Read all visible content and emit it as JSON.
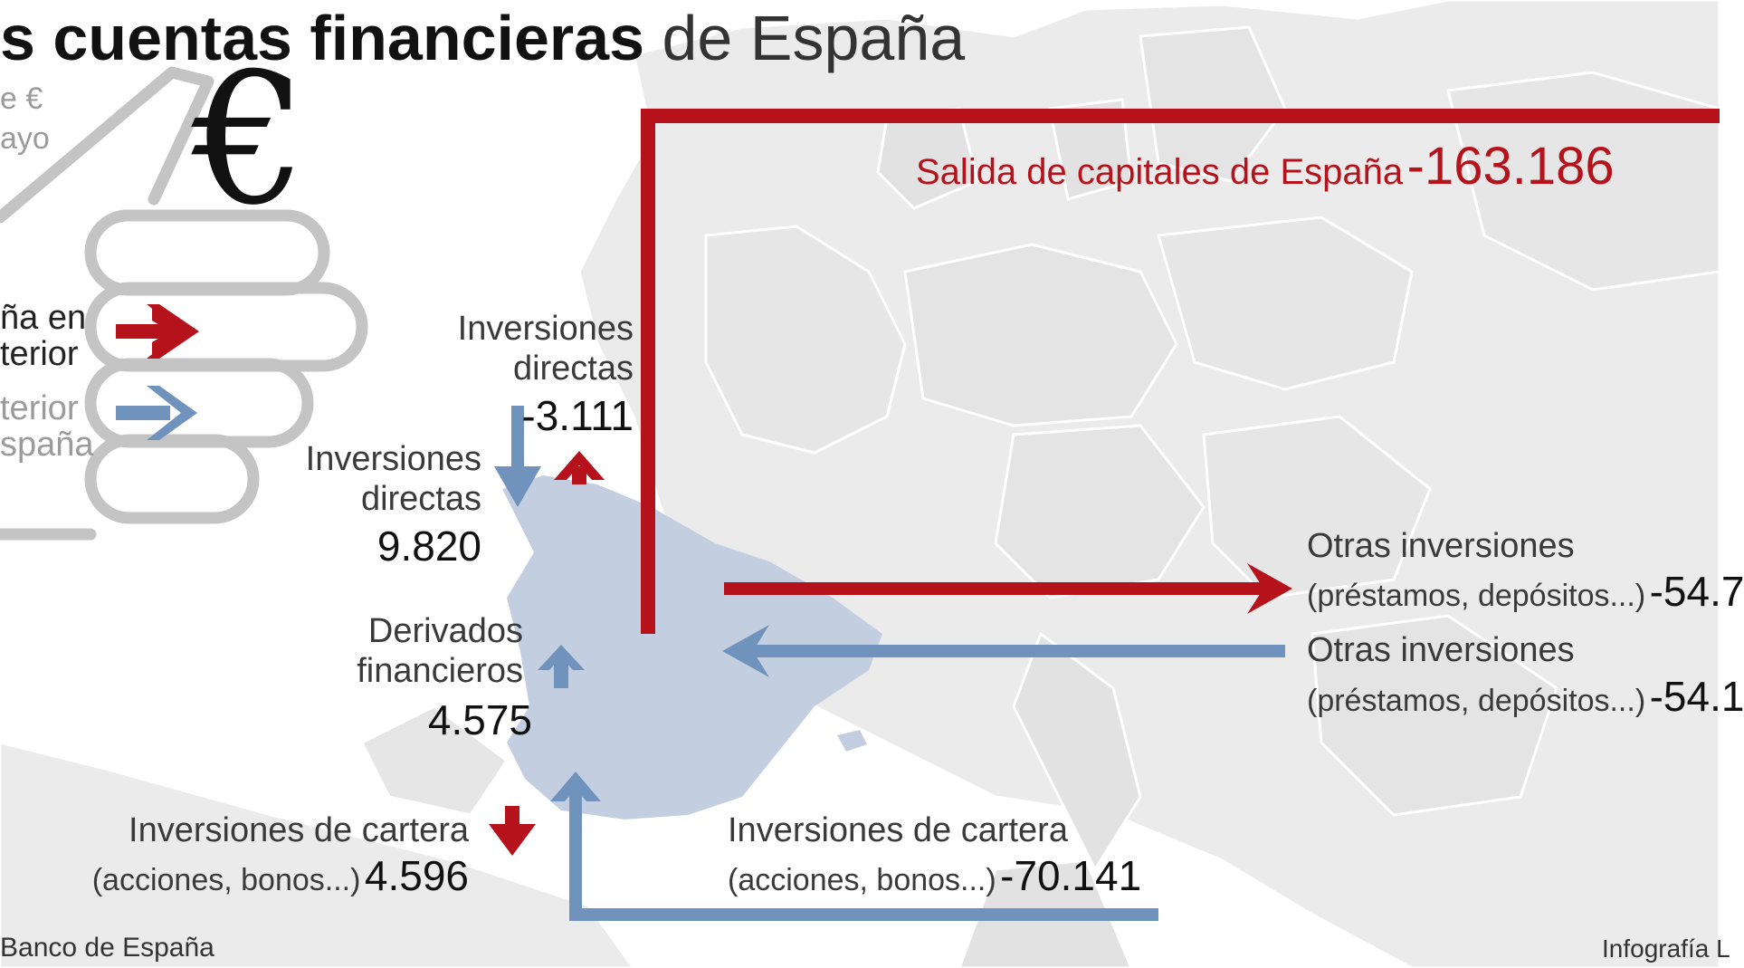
{
  "title": {
    "bold": "s cuentas financieras",
    "light": "de España"
  },
  "legend": {
    "unit_partial": "e €",
    "date_partial": "ayo",
    "euro_symbol": "€",
    "out_line1": "ña en",
    "out_line2": "terior",
    "in_line1": "terior",
    "in_line2": "spaña"
  },
  "colors": {
    "outflow": "#b5121b",
    "inflow": "#6f93bd",
    "spain": "#c3cfe0",
    "map": "#ebebeb"
  },
  "flows": {
    "total_out": {
      "label": "Salida de capitales de España",
      "value": "-163.186"
    },
    "direct_out": {
      "line1": "Inversiones",
      "line2": "directas",
      "value": "-3.111"
    },
    "direct_in": {
      "line1": "Inversiones",
      "line2": "directas",
      "value": "9.820"
    },
    "derivatives": {
      "line1": "Derivados",
      "line2": "financieros",
      "value": "4.575"
    },
    "portfolio_left": {
      "line1": "Inversiones de cartera",
      "line2": "(acciones, bonos...)",
      "value": "4.596"
    },
    "portfolio_right": {
      "line1": "Inversiones de cartera",
      "line2": "(acciones, bonos...)",
      "value": "-70.141"
    },
    "other_out": {
      "line1": "Otras inversiones",
      "line2": "(préstamos, depósitos...)",
      "value": "-54.7"
    },
    "other_in": {
      "line1": "Otras inversiones",
      "line2": "(préstamos, depósitos...)",
      "value": "-54.1"
    }
  },
  "footer": {
    "source": "Banco de España",
    "credit": "Infografía L"
  }
}
